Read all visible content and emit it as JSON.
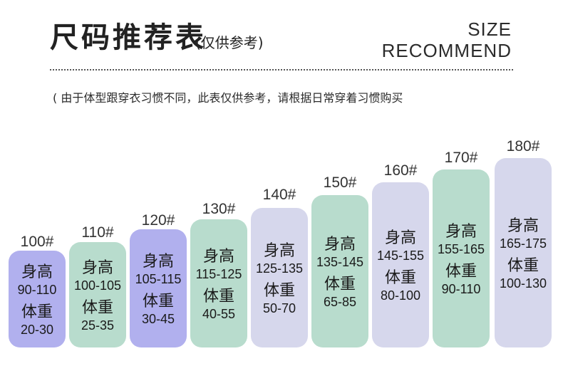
{
  "header": {
    "title": "尺码推荐表",
    "subtitle": "(仅供参考)",
    "en_line1": "SIZE",
    "en_line2": "RECOMMEND"
  },
  "note": "( 由于体型跟穿衣习惯不同，此表仅供参考，请根据日常穿着习惯购买",
  "labels": {
    "height": "身高",
    "weight": "体重"
  },
  "sizes": [
    {
      "label": "100#",
      "height": "90-110",
      "weight": "20-30"
    },
    {
      "label": "110#",
      "height": "100-105",
      "weight": "25-35"
    },
    {
      "label": "120#",
      "height": "105-115",
      "weight": "30-45"
    },
    {
      "label": "130#",
      "height": "115-125",
      "weight": "40-55"
    },
    {
      "label": "140#",
      "height": "125-135",
      "weight": "50-70"
    },
    {
      "label": "150#",
      "height": "135-145",
      "weight": "65-85"
    },
    {
      "label": "160#",
      "height": "145-155",
      "weight": "80-100"
    },
    {
      "label": "170#",
      "height": "155-165",
      "weight": "90-110"
    },
    {
      "label": "180#",
      "height": "165-175",
      "weight": "100-130"
    }
  ],
  "colors": {
    "violet": "#b1b0ee",
    "mint": "#b8dccd",
    "lilac": "#d6d7ec"
  }
}
